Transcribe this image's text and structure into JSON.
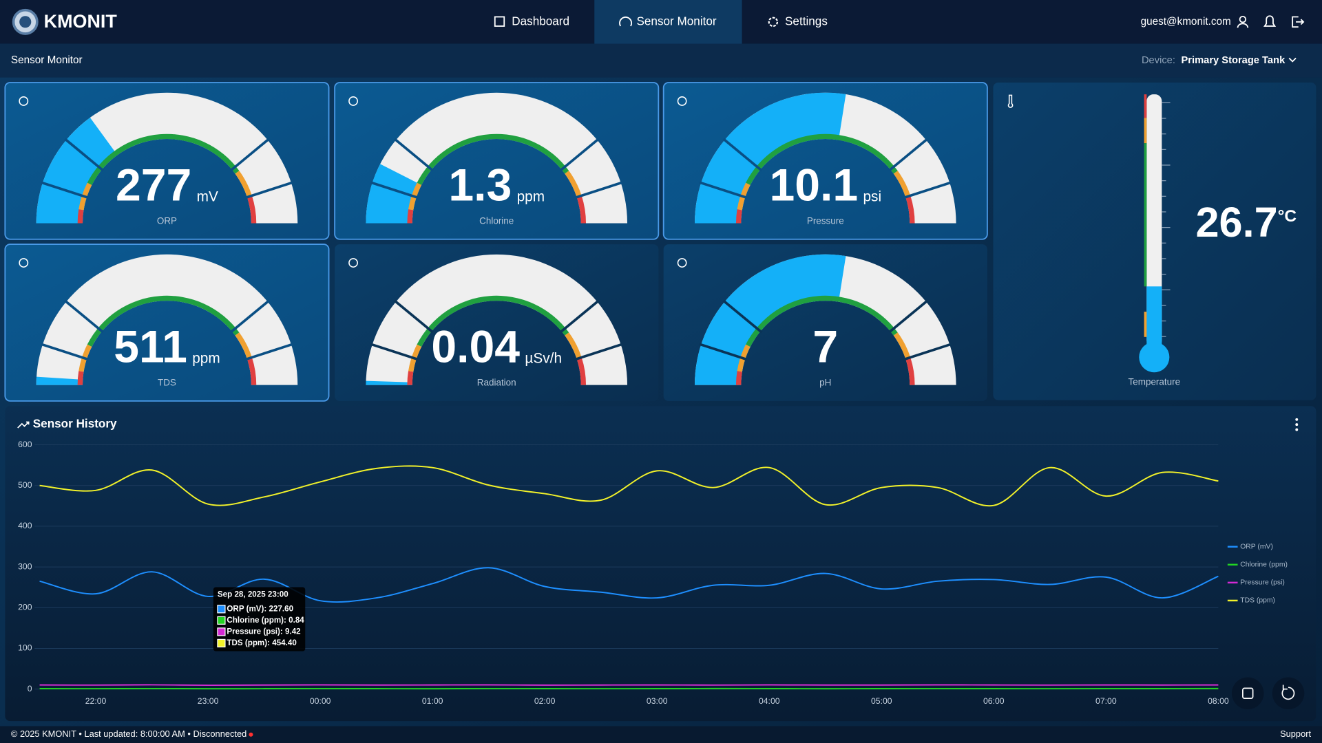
{
  "header": {
    "brand": "KMONIT",
    "nav": [
      "Dashboard",
      "Sensor Monitor",
      "Settings"
    ],
    "user": "guest@kmonit.com"
  },
  "subheader": {
    "title": "Sensor Monitor",
    "device_label": "Device:",
    "device": "Primary Storage Tank"
  },
  "gauges": [
    {
      "label": "ORP",
      "value": 277,
      "unit": "mV"
    },
    {
      "label": "Chlorine",
      "value": 1.3,
      "unit": "ppm"
    },
    {
      "label": "Pressure",
      "value": 10.1,
      "unit": "psi"
    },
    {
      "label": "TDS",
      "value": 511,
      "unit": "ppm"
    },
    {
      "label": "Radiation",
      "value": 0.04,
      "unit": "µSv/h"
    },
    {
      "label": "pH",
      "value": 7,
      "unit": ""
    }
  ],
  "temperature": {
    "label": "Temperature",
    "value": 26.7,
    "unit": "°C"
  },
  "chart_data": {
    "type": "line",
    "title": "Sensor History",
    "categories": [
      null,
      "22:00",
      null,
      "23:00",
      null,
      "00:00",
      null,
      "01:00",
      null,
      "02:00",
      null,
      "03:00",
      null,
      "04:00",
      null,
      "05:00",
      null,
      "06:00",
      null,
      "07:00",
      null,
      "08:00"
    ],
    "series": [
      {
        "name": "ORP (mV)",
        "color": "#1e8fff",
        "values": [
          265,
          234,
          288,
          227.6,
          270,
          217,
          224,
          259,
          298,
          252,
          238,
          224,
          255,
          255,
          284,
          246,
          265,
          269,
          257,
          275,
          224,
          277
        ]
      },
      {
        "name": "Chlorine (ppm)",
        "color": "#22d422",
        "values": [
          1.1,
          0.95,
          1.2,
          0.84,
          1.0,
          1.15,
          1.05,
          0.9,
          1.2,
          1.1,
          0.95,
          1.0,
          1.25,
          1.1,
          0.9,
          1.05,
          1.2,
          1.0,
          0.95,
          1.15,
          1.1,
          1.3
        ]
      },
      {
        "name": "Pressure (psi)",
        "color": "#d42ad4",
        "values": [
          10.2,
          9.8,
          10.5,
          9.42,
          10.0,
          10.3,
          9.9,
          10.1,
          10.4,
          9.7,
          10.0,
          10.2,
          9.8,
          10.3,
          10.0,
          9.9,
          10.4,
          10.1,
          9.8,
          10.2,
          10.0,
          10.1
        ]
      },
      {
        "name": "TDS (ppm)",
        "color": "#f2f22a",
        "values": [
          500,
          488,
          538,
          454.4,
          472,
          509,
          542,
          544,
          501,
          480,
          464,
          536,
          495,
          544,
          453,
          495,
          495,
          451,
          544,
          474,
          532,
          511
        ]
      }
    ],
    "ylim": [
      0,
      600
    ],
    "yticks": [
      0,
      100,
      200,
      300,
      400,
      500,
      600
    ],
    "grid": true,
    "legend": "right",
    "tooltip": {
      "title": "Sep 28, 2025 23:00",
      "items": [
        "ORP (mV): 227.60",
        "Chlorine (ppm): 0.84",
        "Pressure (psi): 9.42",
        "TDS (ppm): 454.40"
      ]
    }
  },
  "footer": {
    "status": "© 2025 KMONIT • Last updated: 8:00:00 AM • Disconnected",
    "support": "Support"
  }
}
